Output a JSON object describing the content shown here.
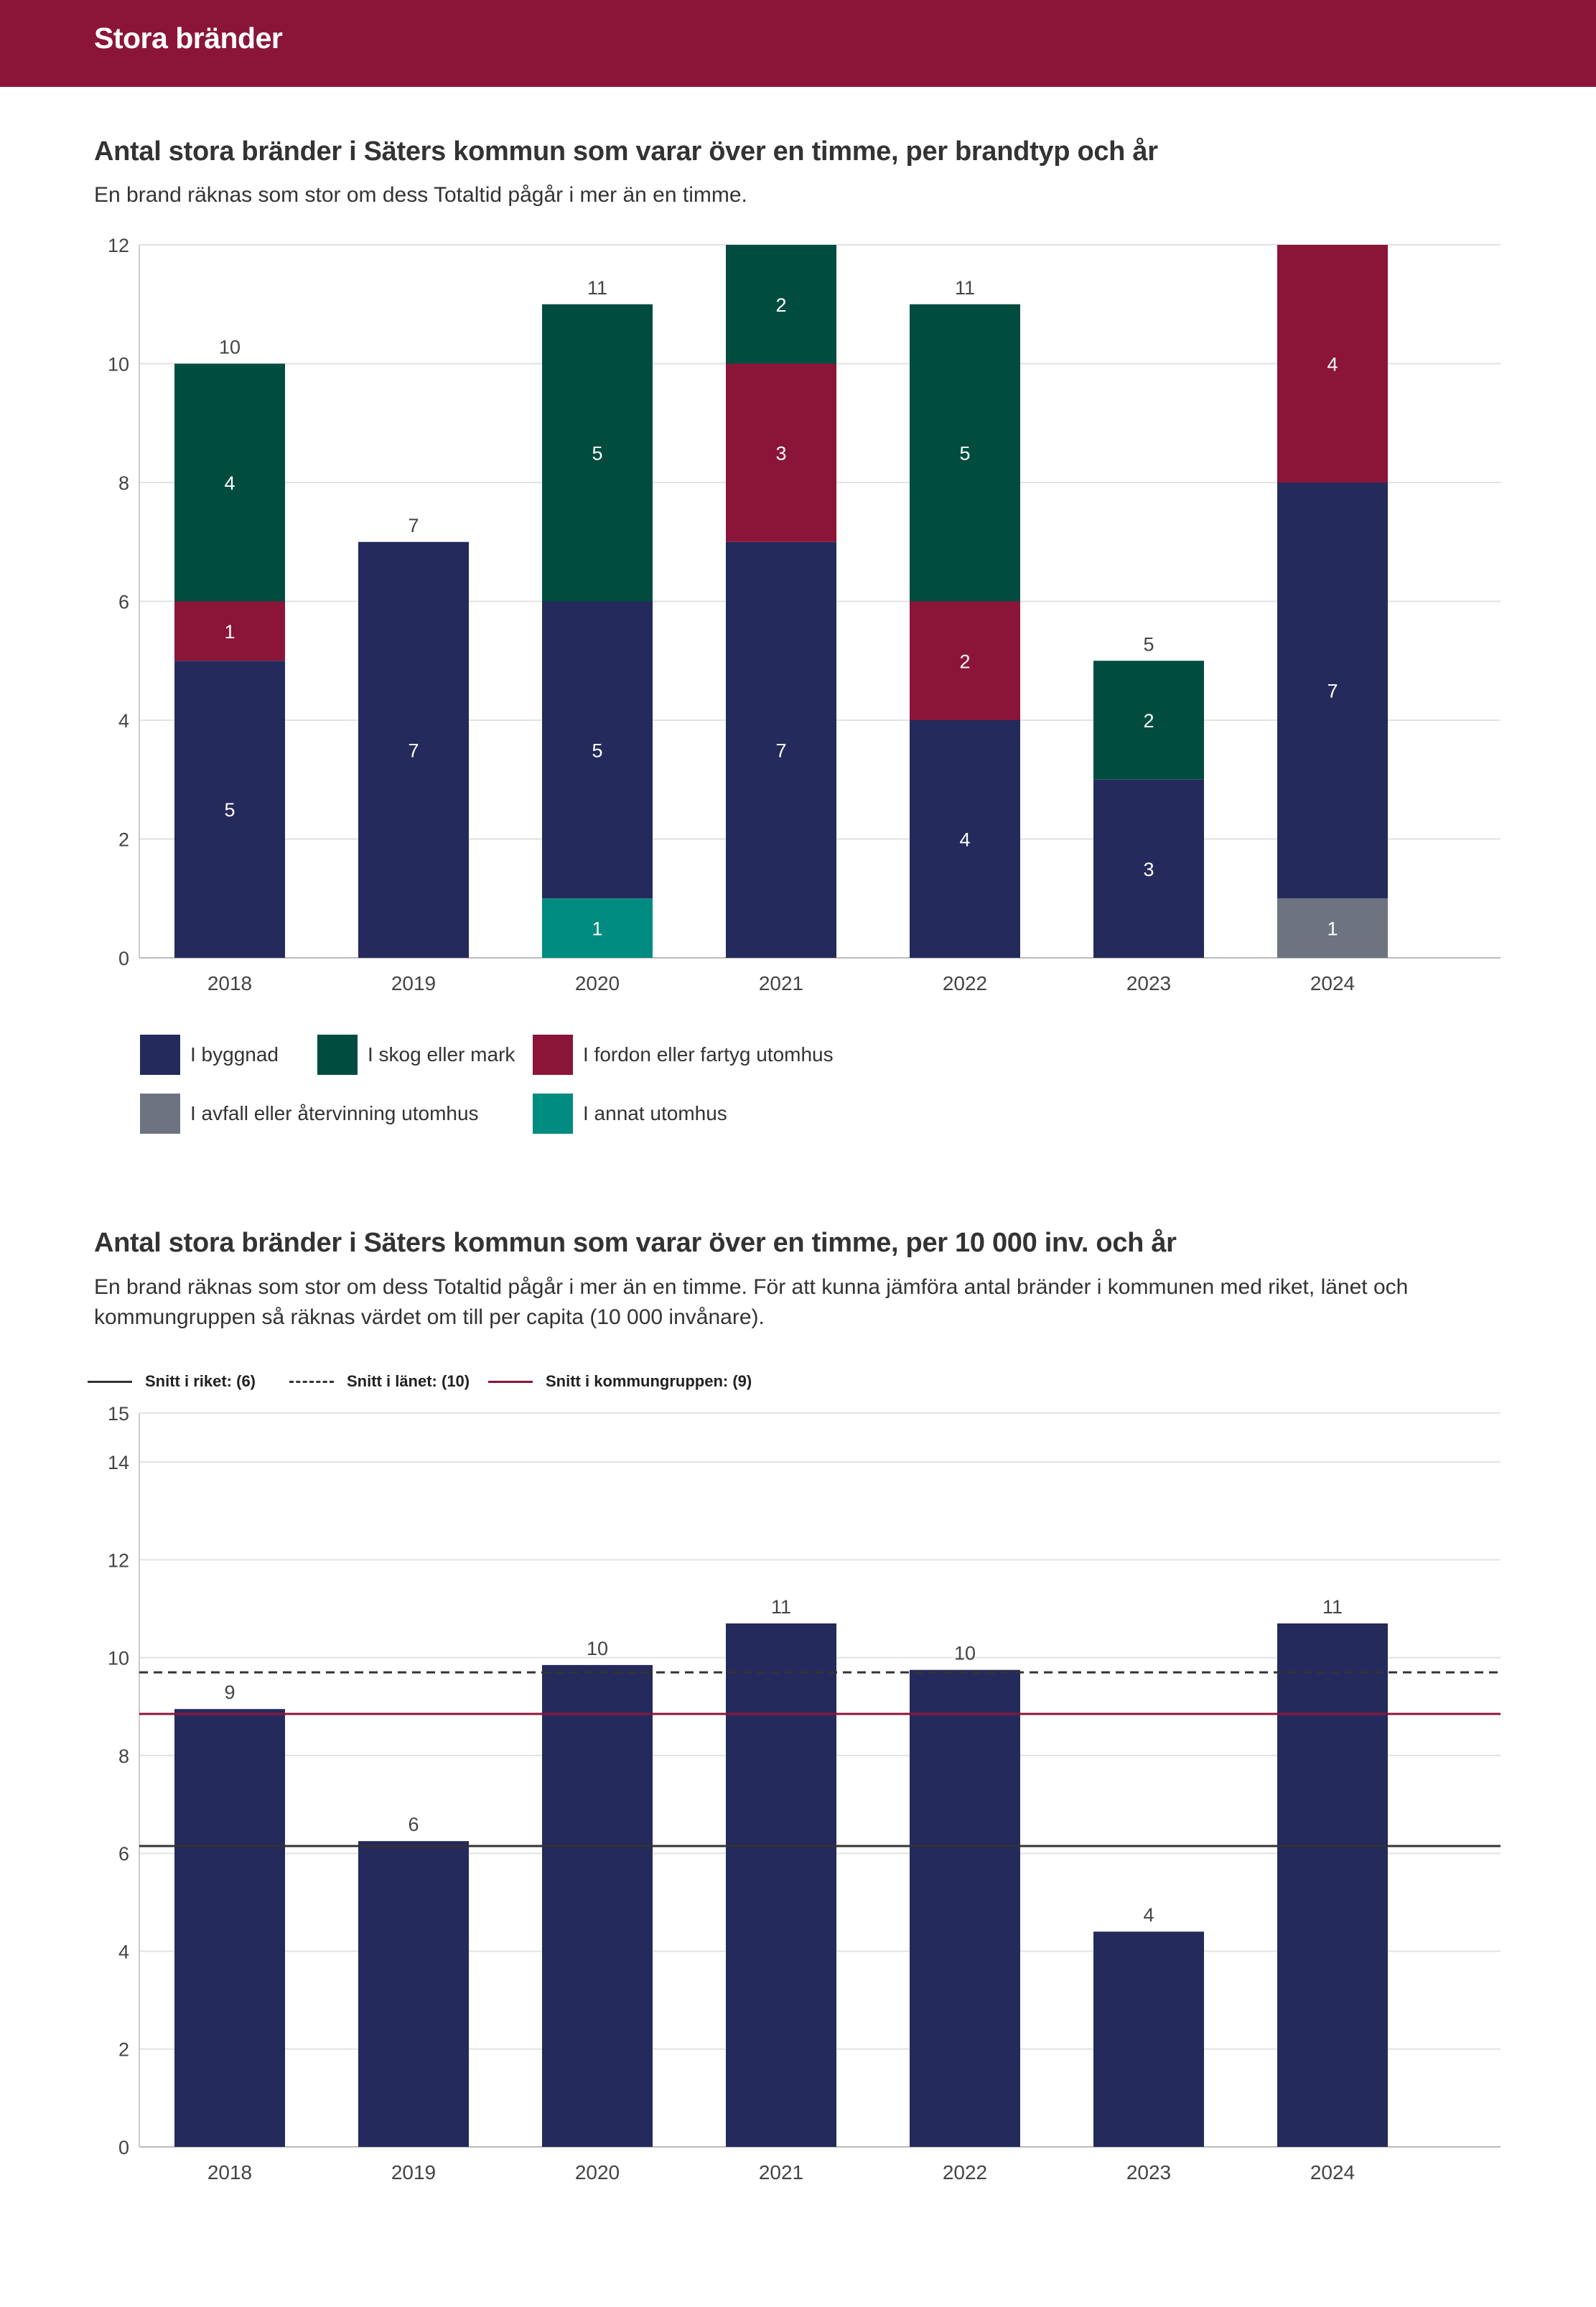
{
  "page": {
    "header_title": "Stora bränder",
    "brand_color": "#8b1538"
  },
  "chart1": {
    "title": "Antal stora bränder i Säters kommun som varar över en timme, per brandtyp och år",
    "subtitle": "En brand räknas som stor om dess Totaltid pågår i mer än en timme."
  },
  "chart2": {
    "title": "Antal stora bränder i Säters kommun som varar över en timme, per 10 000 inv. och år",
    "subtitle": "En brand räknas som stor om dess Totaltid pågår i mer än en timme. För att kunna jämföra antal bränder i kommunen med riket, länet och kommungruppen så räknas värdet om till per capita (10 000 invånare)."
  },
  "chart_data": [
    {
      "type": "bar",
      "stacked": true,
      "title": "Antal stora bränder i Säters kommun som varar över en timme, per brandtyp och år",
      "categories": [
        "2018",
        "2019",
        "2020",
        "2021",
        "2022",
        "2023",
        "2024"
      ],
      "ylim": [
        0,
        12
      ],
      "yticks": [
        0,
        2,
        4,
        6,
        8,
        10,
        12
      ],
      "grid": true,
      "series": [
        {
          "name": "I avfall eller återvinning utomhus",
          "color": "#6d7480",
          "values": [
            0,
            0,
            0,
            0,
            0,
            0,
            1
          ]
        },
        {
          "name": "I annat utomhus",
          "color": "#008b80",
          "values": [
            0,
            0,
            1,
            0,
            0,
            0,
            0
          ]
        },
        {
          "name": "I byggnad",
          "color": "#252a5c",
          "values": [
            5,
            7,
            5,
            7,
            4,
            3,
            7
          ]
        },
        {
          "name": "I fordon eller fartyg utomhus",
          "color": "#8b1538",
          "values": [
            1,
            0,
            0,
            3,
            2,
            0,
            4
          ]
        },
        {
          "name": "I skog eller mark",
          "color": "#004d40",
          "values": [
            4,
            0,
            5,
            2,
            5,
            2,
            0
          ]
        }
      ],
      "totals": [
        10,
        7,
        11,
        12,
        11,
        5,
        12
      ],
      "total_labels": [
        "10",
        "7",
        "11",
        "",
        "11",
        "5",
        ""
      ],
      "legend": [
        {
          "name": "I byggnad",
          "color": "#252a5c"
        },
        {
          "name": "I skog eller mark",
          "color": "#004d40"
        },
        {
          "name": "I fordon eller fartyg utomhus",
          "color": "#8b1538"
        },
        {
          "name": "I avfall eller återvinning utomhus",
          "color": "#6d7480"
        },
        {
          "name": "I annat utomhus",
          "color": "#008b80"
        }
      ]
    },
    {
      "type": "bar",
      "title": "Antal stora bränder i Säters kommun som varar över en timme, per 10 000 inv. och år",
      "categories": [
        "2018",
        "2019",
        "2020",
        "2021",
        "2022",
        "2023",
        "2024"
      ],
      "values": [
        8.95,
        6.25,
        9.85,
        10.7,
        9.75,
        4.4,
        10.7
      ],
      "value_labels": [
        "9",
        "6",
        "10",
        "11",
        "10",
        "4",
        "11"
      ],
      "bar_color": "#252a5c",
      "ylim": [
        0,
        15
      ],
      "yticks": [
        0,
        2,
        4,
        6,
        8,
        10,
        12,
        14,
        15
      ],
      "grid": true,
      "reference_lines": [
        {
          "name": "Snitt i riket: (6)",
          "value": 6.15,
          "style": "solid",
          "color": "#333333"
        },
        {
          "name": "Snitt i länet: (10)",
          "value": 9.7,
          "style": "dashed",
          "color": "#333333"
        },
        {
          "name": "Snitt i kommungruppen: (9)",
          "value": 8.85,
          "style": "solid",
          "color": "#8b1538"
        }
      ]
    }
  ]
}
